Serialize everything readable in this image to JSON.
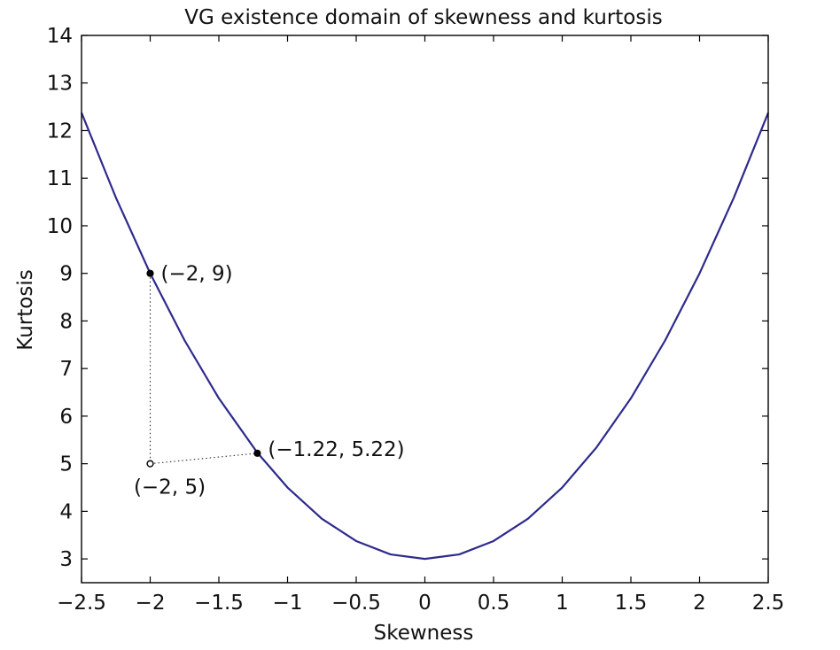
{
  "chart_data": {
    "type": "line",
    "title": "VG existence domain of skewness and kurtosis",
    "xlabel": "Skewness",
    "ylabel": "Kurtosis",
    "xlim": [
      -2.5,
      2.5
    ],
    "ylim": [
      2.5,
      14
    ],
    "xticks": [
      -2.5,
      -2,
      -1.5,
      -1,
      -0.5,
      0,
      0.5,
      1,
      1.5,
      2,
      2.5
    ],
    "xtick_labels": [
      "−2.5",
      "−2",
      "−1.5",
      "−1",
      "−0.5",
      "0",
      "0.5",
      "1",
      "1.5",
      "2",
      "2.5"
    ],
    "yticks": [
      3,
      4,
      5,
      6,
      7,
      8,
      9,
      10,
      11,
      12,
      13,
      14
    ],
    "ytick_labels": [
      "3",
      "4",
      "5",
      "6",
      "7",
      "8",
      "9",
      "10",
      "11",
      "12",
      "13",
      "14"
    ],
    "grid": false,
    "series": [
      {
        "color": "#2e2a8c",
        "x": [
          -2.5,
          -2.25,
          -2,
          -1.75,
          -1.5,
          -1.22,
          -1,
          -0.75,
          -0.5,
          -0.25,
          0,
          0.25,
          0.5,
          0.75,
          1,
          1.25,
          1.5,
          1.75,
          2,
          2.25,
          2.5
        ],
        "y": [
          12.375,
          10.594,
          9.0,
          7.594,
          6.375,
          5.233,
          4.5,
          3.844,
          3.375,
          3.094,
          3.0,
          3.094,
          3.375,
          3.844,
          4.5,
          5.344,
          6.375,
          7.594,
          9.0,
          10.594,
          12.375
        ]
      }
    ],
    "points": [
      {
        "x": -2,
        "y": 9,
        "label": "(−2, 9)",
        "filled": true
      },
      {
        "x": -1.22,
        "y": 5.22,
        "label": "(−1.22, 5.22)",
        "filled": true
      },
      {
        "x": -2,
        "y": 5,
        "label": "(−2, 5)",
        "filled": false
      }
    ],
    "guides": [
      {
        "from": [
          -2,
          9
        ],
        "to": [
          -2,
          5
        ],
        "style": "dotted"
      },
      {
        "from": [
          -2,
          5
        ],
        "to": [
          -1.22,
          5.22
        ],
        "style": "dotted"
      }
    ]
  }
}
